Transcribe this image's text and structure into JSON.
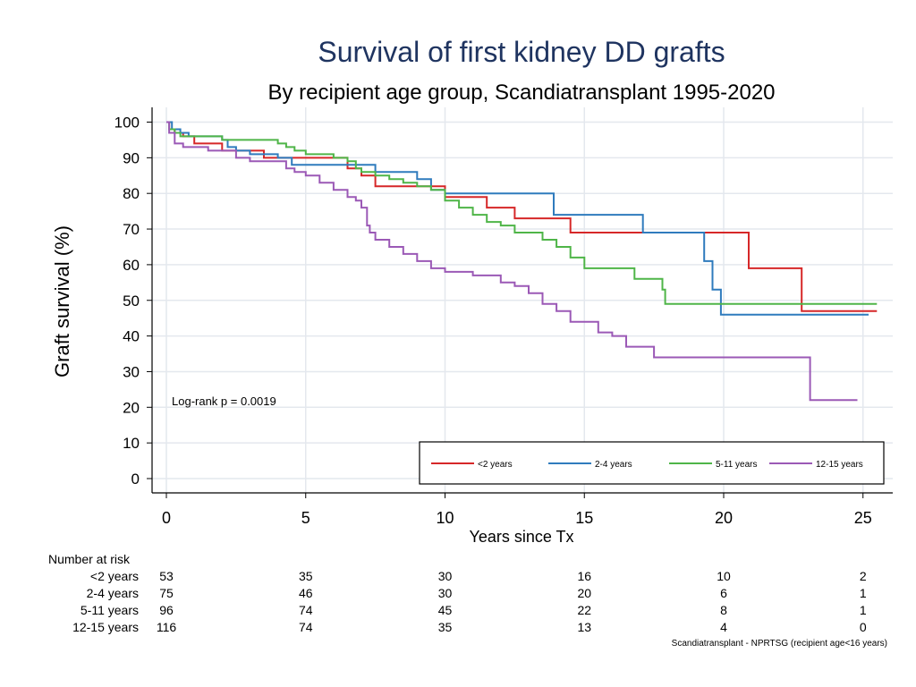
{
  "chart_data": {
    "type": "line",
    "title": "Survival of first kidney DD grafts",
    "subtitle": "By recipient age group, Scandiatransplant 1995-2020",
    "xlabel": "Years since Tx",
    "ylabel": "Graft survival (%)",
    "xlim": [
      0,
      25
    ],
    "ylim": [
      0,
      100
    ],
    "xticks": [
      0,
      5,
      10,
      15,
      20,
      25
    ],
    "yticks": [
      0,
      10,
      20,
      30,
      40,
      50,
      60,
      70,
      80,
      90,
      100
    ],
    "grid": true,
    "legend_position": "bottom-right",
    "annotation": "Log-rank p = 0.0019",
    "footnote": "Scandiatransplant - NPRTSG (recipient age<16 years)",
    "colors": {
      "title": "#1f3460",
      "grid": "#e4e8ee",
      "axis": "#000000"
    },
    "series": [
      {
        "name": "<2 years",
        "color": "#d62728",
        "points": [
          [
            0,
            100
          ],
          [
            0.1,
            98
          ],
          [
            0.3,
            97
          ],
          [
            0.6,
            96
          ],
          [
            1,
            94
          ],
          [
            1.5,
            94
          ],
          [
            2,
            92
          ],
          [
            3,
            92
          ],
          [
            3.5,
            90
          ],
          [
            4,
            90
          ],
          [
            5,
            90
          ],
          [
            6,
            90
          ],
          [
            6.5,
            87
          ],
          [
            7,
            85
          ],
          [
            7.5,
            82
          ],
          [
            8,
            82
          ],
          [
            9,
            82
          ],
          [
            10,
            79
          ],
          [
            11,
            79
          ],
          [
            11.5,
            76
          ],
          [
            12,
            76
          ],
          [
            12.5,
            73
          ],
          [
            13,
            73
          ],
          [
            14,
            73
          ],
          [
            14.5,
            69
          ],
          [
            15,
            69
          ],
          [
            17,
            69
          ],
          [
            19,
            69
          ],
          [
            20,
            69
          ],
          [
            20.9,
            59
          ],
          [
            22,
            59
          ],
          [
            22.8,
            47
          ],
          [
            25.5,
            47
          ]
        ]
      },
      {
        "name": "2-4 years",
        "color": "#2f7bbd",
        "points": [
          [
            0,
            100
          ],
          [
            0.2,
            98
          ],
          [
            0.5,
            97
          ],
          [
            0.8,
            96
          ],
          [
            1.5,
            96
          ],
          [
            2,
            95
          ],
          [
            2.2,
            93
          ],
          [
            2.5,
            92
          ],
          [
            3,
            91
          ],
          [
            3.5,
            91
          ],
          [
            4,
            90
          ],
          [
            4.5,
            88
          ],
          [
            5,
            88
          ],
          [
            6,
            88
          ],
          [
            7,
            88
          ],
          [
            7.5,
            86
          ],
          [
            8.5,
            86
          ],
          [
            9,
            84
          ],
          [
            9.5,
            81
          ],
          [
            10,
            80
          ],
          [
            11,
            80
          ],
          [
            12,
            80
          ],
          [
            13,
            80
          ],
          [
            13.8,
            80
          ],
          [
            13.9,
            74
          ],
          [
            14.5,
            74
          ],
          [
            15,
            74
          ],
          [
            16,
            74
          ],
          [
            17.1,
            69
          ],
          [
            18,
            69
          ],
          [
            19,
            69
          ],
          [
            19.3,
            61
          ],
          [
            19.6,
            53
          ],
          [
            19.9,
            46
          ],
          [
            22,
            46
          ],
          [
            25.2,
            46
          ]
        ]
      },
      {
        "name": "5-11 years",
        "color": "#4fb548",
        "points": [
          [
            0,
            100
          ],
          [
            0.1,
            98
          ],
          [
            0.3,
            97
          ],
          [
            0.5,
            96
          ],
          [
            1,
            96
          ],
          [
            2,
            95
          ],
          [
            3,
            95
          ],
          [
            3.5,
            95
          ],
          [
            4,
            94
          ],
          [
            4.3,
            93
          ],
          [
            4.6,
            92
          ],
          [
            5,
            91
          ],
          [
            5.5,
            91
          ],
          [
            6,
            90
          ],
          [
            6.5,
            89
          ],
          [
            6.8,
            87
          ],
          [
            7,
            86
          ],
          [
            7.5,
            85
          ],
          [
            8,
            84
          ],
          [
            8.5,
            83
          ],
          [
            9,
            82
          ],
          [
            9.5,
            81
          ],
          [
            10,
            78
          ],
          [
            10.5,
            76
          ],
          [
            11,
            74
          ],
          [
            11.5,
            72
          ],
          [
            12,
            71
          ],
          [
            12.5,
            69
          ],
          [
            13.5,
            67
          ],
          [
            14,
            65
          ],
          [
            14.5,
            62
          ],
          [
            15,
            59
          ],
          [
            16,
            59
          ],
          [
            16.5,
            59
          ],
          [
            16.8,
            56
          ],
          [
            17,
            56
          ],
          [
            17.7,
            56
          ],
          [
            17.8,
            53
          ],
          [
            17.9,
            49
          ],
          [
            20,
            49
          ],
          [
            22,
            49
          ],
          [
            25.5,
            49
          ]
        ]
      },
      {
        "name": "12-15 years",
        "color": "#9b59b6",
        "points": [
          [
            0,
            100
          ],
          [
            0.1,
            97
          ],
          [
            0.3,
            94
          ],
          [
            0.6,
            93
          ],
          [
            1,
            93
          ],
          [
            1.5,
            92
          ],
          [
            2,
            92
          ],
          [
            2.5,
            90
          ],
          [
            3,
            89
          ],
          [
            4,
            89
          ],
          [
            4.3,
            87
          ],
          [
            4.6,
            86
          ],
          [
            5,
            85
          ],
          [
            5.5,
            83
          ],
          [
            6,
            81
          ],
          [
            6.5,
            79
          ],
          [
            6.8,
            78
          ],
          [
            7,
            76
          ],
          [
            7.2,
            71
          ],
          [
            7.3,
            69
          ],
          [
            7.5,
            67
          ],
          [
            8,
            65
          ],
          [
            8.5,
            63
          ],
          [
            9,
            61
          ],
          [
            9.5,
            59
          ],
          [
            10,
            58
          ],
          [
            10.5,
            58
          ],
          [
            11,
            57
          ],
          [
            12,
            55
          ],
          [
            12.5,
            54
          ],
          [
            13,
            52
          ],
          [
            13.5,
            49
          ],
          [
            14,
            47
          ],
          [
            14.5,
            44
          ],
          [
            15,
            44
          ],
          [
            15.5,
            41
          ],
          [
            16,
            40
          ],
          [
            16.5,
            37
          ],
          [
            17,
            37
          ],
          [
            17.5,
            34
          ],
          [
            18,
            34
          ],
          [
            20,
            34
          ],
          [
            22,
            34
          ],
          [
            23,
            34
          ],
          [
            23.1,
            22
          ],
          [
            24,
            22
          ],
          [
            24.8,
            22
          ]
        ]
      }
    ],
    "risk_table": {
      "header": "Number at risk",
      "times": [
        0,
        5,
        10,
        15,
        20,
        25
      ],
      "rows": [
        {
          "label": "<2 years",
          "values": [
            "53",
            "35",
            "30",
            "16",
            "10",
            "2"
          ]
        },
        {
          "label": "2-4 years",
          "values": [
            "75",
            "46",
            "30",
            "20",
            "6",
            "1"
          ]
        },
        {
          "label": "5-11 years",
          "values": [
            "96",
            "74",
            "45",
            "22",
            "8",
            "1"
          ]
        },
        {
          "label": "12-15 years",
          "values": [
            "116",
            "74",
            "35",
            "13",
            "4",
            "0"
          ]
        }
      ]
    }
  }
}
